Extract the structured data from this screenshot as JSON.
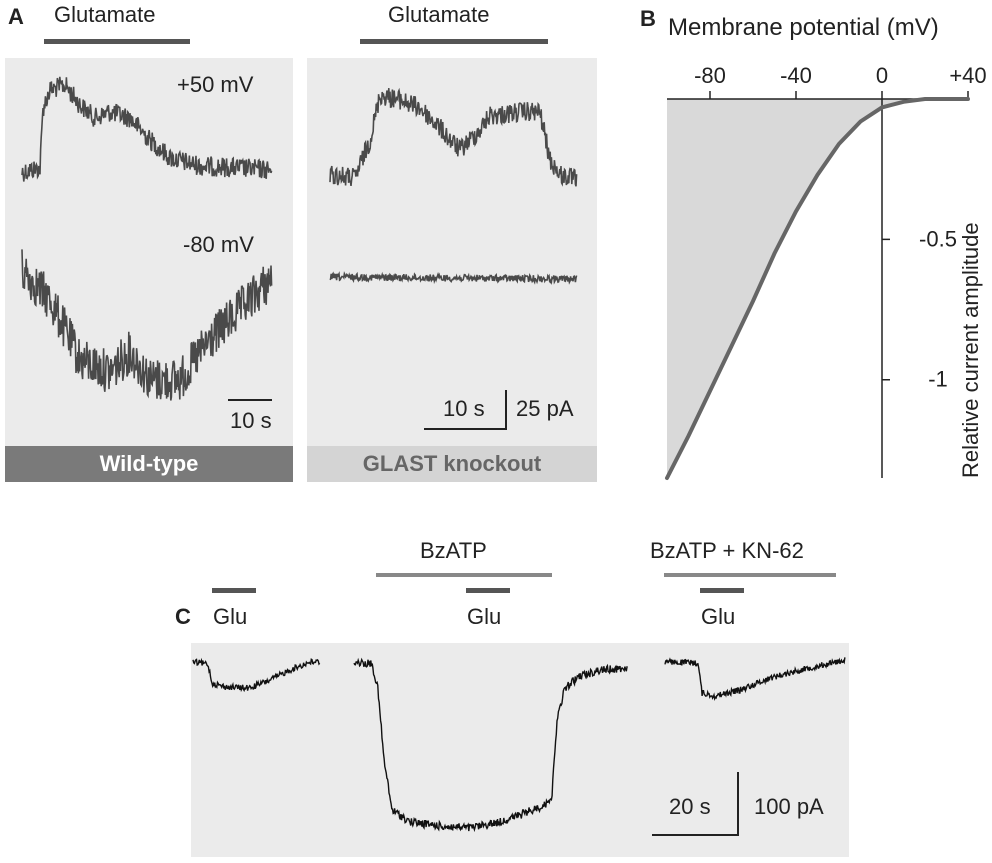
{
  "panel_a": {
    "letter": "A",
    "wild_type": {
      "stimulus_label": "Glutamate",
      "voltage_top": "+50 mV",
      "voltage_bottom": "-80 mV",
      "scale_time": "10 s",
      "footer": "Wild-type"
    },
    "knockout": {
      "stimulus_label": "Glutamate",
      "scale_time": "10 s",
      "scale_current": "25 pA",
      "footer": "GLAST knockout"
    }
  },
  "panel_b": {
    "letter": "B",
    "chart_data": {
      "type": "line",
      "title": "Membrane potential (mV)",
      "xlabel": "Membrane potential (mV)",
      "ylabel": "Relative current amplitude",
      "x_ticks": [
        "-80",
        "-40",
        "0",
        "+40"
      ],
      "y_ticks": [
        "-0.5",
        "-1"
      ],
      "xlim": [
        -100,
        40
      ],
      "ylim": [
        -1.35,
        0
      ],
      "series": [
        {
          "name": "Relative current",
          "x": [
            -100,
            -90,
            -80,
            -70,
            -60,
            -50,
            -40,
            -30,
            -20,
            -10,
            0,
            10,
            20,
            30,
            40
          ],
          "y": [
            -1.35,
            -1.2,
            -1.04,
            -0.88,
            -0.72,
            -0.55,
            -0.4,
            -0.27,
            -0.16,
            -0.08,
            -0.03,
            -0.01,
            0.0,
            0.0,
            0.0
          ]
        }
      ],
      "shaded_area": "below 0, above curve"
    }
  },
  "panel_c": {
    "letter": "C",
    "conditions": [
      {
        "drug_label": "",
        "glu_label": "Glu"
      },
      {
        "drug_label": "BzATP",
        "glu_label": "Glu"
      },
      {
        "drug_label": "BzATP + KN-62",
        "glu_label": "Glu"
      }
    ],
    "scale_time": "20 s",
    "scale_current": "100 pA"
  },
  "colors": {
    "trace": "#4a4a4a",
    "trace_c": "#111111",
    "shade": "#ebebeb",
    "curve": "#666666"
  }
}
